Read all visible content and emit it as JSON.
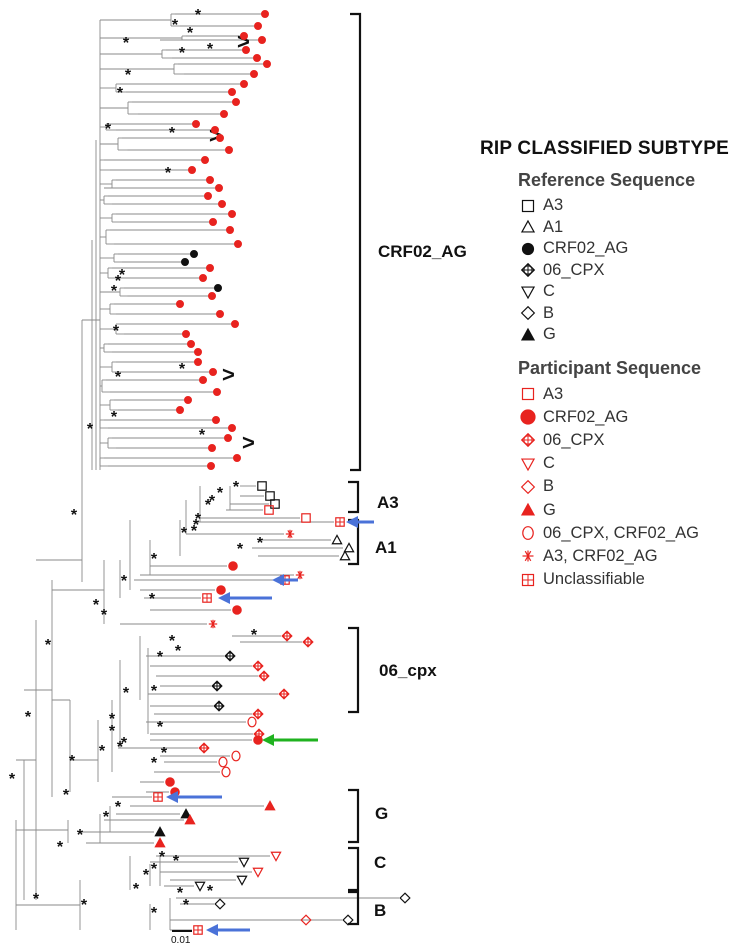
{
  "legend": {
    "title": "RIP CLASSIFIED SUBTYPE",
    "reference_heading": "Reference Sequence",
    "reference_items": [
      {
        "symbol": "square",
        "filled": false,
        "color": "#111111",
        "label": "A3"
      },
      {
        "symbol": "triangle-up",
        "filled": false,
        "color": "#111111",
        "label": "A1"
      },
      {
        "symbol": "circle",
        "filled": true,
        "color": "#111111",
        "label": "CRF02_AG"
      },
      {
        "symbol": "circle-cross",
        "filled": false,
        "color": "#111111",
        "label": "06_CPX"
      },
      {
        "symbol": "triangle-down",
        "filled": false,
        "color": "#111111",
        "label": "C"
      },
      {
        "symbol": "diamond",
        "filled": false,
        "color": "#111111",
        "label": "B"
      },
      {
        "symbol": "triangle-up",
        "filled": true,
        "color": "#111111",
        "label": "G"
      }
    ],
    "participant_heading": "Participant Sequence",
    "participant_items": [
      {
        "symbol": "square",
        "filled": false,
        "color": "#e8231f",
        "label": "A3"
      },
      {
        "symbol": "circle",
        "filled": true,
        "color": "#e8231f",
        "label": "CRF02_AG"
      },
      {
        "symbol": "circle-cross",
        "filled": false,
        "color": "#e8231f",
        "label": "06_CPX"
      },
      {
        "symbol": "triangle-down",
        "filled": false,
        "color": "#e8231f",
        "label": "C"
      },
      {
        "symbol": "diamond",
        "filled": false,
        "color": "#e8231f",
        "label": "B"
      },
      {
        "symbol": "triangle-up",
        "filled": true,
        "color": "#e8231f",
        "label": "G"
      },
      {
        "symbol": "ellipse",
        "filled": false,
        "color": "#e8231f",
        "label": "06_CPX, CRF02_AG"
      },
      {
        "symbol": "asterisk",
        "filled": false,
        "color": "#e8231f",
        "label": "A3, CRF02_AG"
      },
      {
        "symbol": "square-cross",
        "filled": false,
        "color": "#e8231f",
        "label": "Unclassifiable"
      }
    ]
  },
  "clades": {
    "crf02_ag": "CRF02_AG",
    "a3": "A3",
    "a1": "A1",
    "cpx06": "06_cpx",
    "g": "G",
    "c": "C",
    "b": "B"
  },
  "bootstrap_mark": "*",
  "highlight_mark": ">",
  "scale_bar_label": "0.01",
  "colors": {
    "participant": "#e8231f",
    "reference": "#111111",
    "branch": "#8a8a8a",
    "arrow_unclassifiable": "#4a72d8",
    "arrow_highlight": "#1fb21f"
  }
}
